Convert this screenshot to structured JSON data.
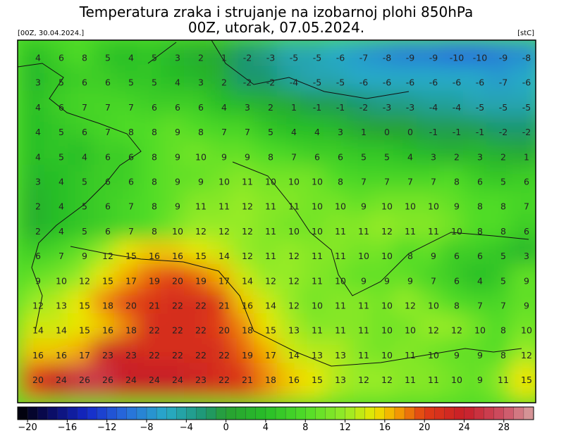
{
  "header": {
    "title": "Temperatura zraka i strujanje na izobarnoj plohi 850hPa",
    "subtitle": "00Z, utorak, 07.05.2024.",
    "run": "[00Z, 30.04.2024.]",
    "unit": "[stC]"
  },
  "map": {
    "rows": [
      [
        4,
        6,
        8,
        5,
        4,
        5,
        3,
        2,
        1,
        -2,
        -3,
        -5,
        -5,
        -6,
        -7,
        -8,
        -9,
        -9,
        -10,
        -10,
        -9,
        -8
      ],
      [
        3,
        5,
        6,
        6,
        5,
        5,
        4,
        3,
        2,
        -2,
        -2,
        -4,
        -5,
        -5,
        -6,
        -6,
        -6,
        -6,
        -6,
        -6,
        -7,
        -6
      ],
      [
        4,
        6,
        7,
        7,
        7,
        6,
        6,
        6,
        4,
        3,
        2,
        1,
        -1,
        -1,
        -2,
        -3,
        -3,
        -4,
        -4,
        -5,
        -5,
        -5
      ],
      [
        4,
        5,
        6,
        7,
        8,
        8,
        9,
        8,
        7,
        7,
        5,
        4,
        4,
        3,
        1,
        0,
        0,
        -1,
        -1,
        -1,
        -2,
        -2
      ],
      [
        4,
        5,
        4,
        6,
        6,
        8,
        9,
        10,
        9,
        9,
        8,
        7,
        6,
        6,
        5,
        5,
        4,
        3,
        2,
        3,
        2,
        1
      ],
      [
        3,
        4,
        5,
        6,
        6,
        8,
        9,
        9,
        10,
        11,
        10,
        10,
        10,
        8,
        7,
        7,
        7,
        7,
        8,
        6,
        5,
        6
      ],
      [
        2,
        4,
        5,
        6,
        7,
        8,
        9,
        11,
        11,
        12,
        11,
        11,
        10,
        10,
        9,
        10,
        10,
        10,
        9,
        8,
        8,
        7
      ],
      [
        2,
        4,
        5,
        6,
        7,
        8,
        10,
        12,
        12,
        12,
        11,
        10,
        10,
        11,
        11,
        12,
        11,
        11,
        10,
        8,
        8,
        6
      ],
      [
        6,
        7,
        9,
        12,
        15,
        16,
        16,
        15,
        14,
        12,
        11,
        12,
        11,
        11,
        10,
        10,
        8,
        9,
        6,
        6,
        5,
        3
      ],
      [
        9,
        10,
        12,
        15,
        17,
        19,
        20,
        19,
        17,
        14,
        12,
        12,
        11,
        10,
        9,
        9,
        9,
        7,
        6,
        4,
        5,
        9
      ],
      [
        12,
        13,
        15,
        18,
        20,
        21,
        22,
        22,
        21,
        16,
        14,
        12,
        10,
        11,
        11,
        10,
        12,
        10,
        8,
        7,
        7,
        9
      ],
      [
        14,
        14,
        15,
        16,
        18,
        22,
        22,
        22,
        20,
        18,
        15,
        13,
        11,
        11,
        11,
        10,
        10,
        12,
        12,
        10,
        8,
        10
      ],
      [
        16,
        16,
        17,
        23,
        23,
        22,
        22,
        22,
        22,
        19,
        17,
        14,
        13,
        13,
        11,
        10,
        11,
        10,
        9,
        9,
        8,
        12
      ],
      [
        20,
        24,
        26,
        26,
        24,
        24,
        24,
        23,
        22,
        21,
        18,
        16,
        15,
        13,
        12,
        12,
        11,
        11,
        10,
        9,
        11,
        15
      ]
    ]
  },
  "colorbar": {
    "lim": [
      -21,
      31
    ],
    "ticks": [
      {
        "value": -20,
        "label": "−20"
      },
      {
        "value": -16,
        "label": "−16"
      },
      {
        "value": -12,
        "label": "−12"
      },
      {
        "value": -8,
        "label": "−8"
      },
      {
        "value": -4,
        "label": "−4"
      },
      0,
      4,
      8,
      12,
      16,
      20,
      24,
      28
    ]
  }
}
